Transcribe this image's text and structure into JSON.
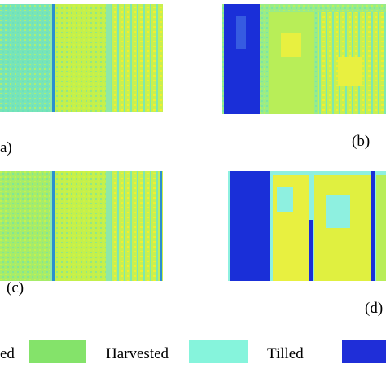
{
  "panels": [
    {
      "label": "a)"
    },
    {
      "label": "(b)"
    },
    {
      "label": "(c)"
    },
    {
      "label": "(d)"
    }
  ],
  "legend": [
    {
      "label": "ed"
    },
    {
      "label": "Harvested"
    },
    {
      "label": "Tilled"
    }
  ]
}
